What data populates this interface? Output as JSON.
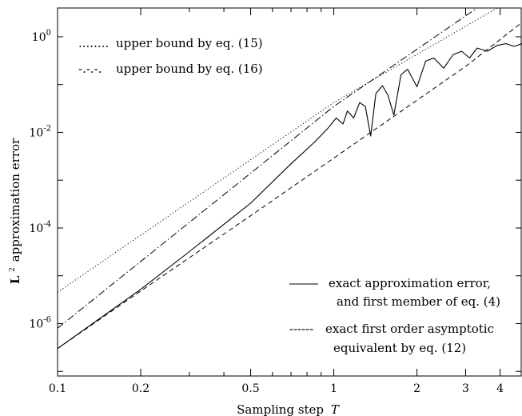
{
  "chart_data": {
    "type": "line",
    "title": "",
    "xlabel_main": "Sampling step",
    "xlabel_var": "T",
    "ylabel_main": "approximation error",
    "ylabel_prefix": "L",
    "ylabel_sup": "2",
    "xscale": "log",
    "yscale": "log",
    "xlim": [
      0.1,
      4.8
    ],
    "ylim": [
      8e-08,
      4
    ],
    "grid": false,
    "x_ticks": [
      {
        "v": 0.1,
        "label": "0.1"
      },
      {
        "v": 0.2,
        "label": "0.2"
      },
      {
        "v": 0.5,
        "label": "0.5"
      },
      {
        "v": 1,
        "label": "1"
      },
      {
        "v": 2,
        "label": "2"
      },
      {
        "v": 3,
        "label": "3"
      },
      {
        "v": 4,
        "label": "4"
      }
    ],
    "y_ticks": [
      {
        "v": 1,
        "base": "10",
        "exp": "0"
      },
      {
        "v": 0.01,
        "base": "10",
        "exp": "-2"
      },
      {
        "v": 0.0001,
        "base": "10",
        "exp": "-4"
      },
      {
        "v": 1e-06,
        "base": "10",
        "exp": "-6"
      }
    ],
    "legend": [
      {
        "sample": "........",
        "label": "upper bound by eq. (15)",
        "series": "upper_bound_15"
      },
      {
        "sample": "-.-.-.",
        "label": "upper bound by eq. (16)",
        "series": "upper_bound_16"
      },
      {
        "sample": "",
        "label": "exact approximation error,",
        "label2": "and first member of eq. (4)",
        "series": "exact_error"
      },
      {
        "sample": "------",
        "label": "exact first order asymptotic",
        "label2": "equivalent by eq. (12)",
        "series": "asymptotic"
      }
    ],
    "series": [
      {
        "key": "upper_bound_15",
        "style": "dotted",
        "x": [
          0.1,
          1,
          3.9
        ],
        "y": [
          4.5e-06,
          0.042,
          4
        ]
      },
      {
        "key": "upper_bound_16",
        "style": "dashdot",
        "x": [
          0.1,
          1,
          3.3
        ],
        "y": [
          8e-07,
          0.035,
          4
        ]
      },
      {
        "key": "asymptotic",
        "style": "dashed",
        "x": [
          0.1,
          0.2,
          0.5,
          1,
          2,
          3,
          4.8
        ],
        "y": [
          3e-07,
          4.8e-06,
          0.00018,
          0.0029,
          0.047,
          0.24,
          2.0
        ]
      },
      {
        "key": "exact_error",
        "style": "solid",
        "x": [
          0.1,
          0.15,
          0.2,
          0.3,
          0.5,
          0.7,
          0.85,
          0.95,
          1.02,
          1.08,
          1.12,
          1.18,
          1.24,
          1.3,
          1.36,
          1.42,
          1.5,
          1.57,
          1.65,
          1.75,
          1.85,
          2.0,
          2.15,
          2.3,
          2.5,
          2.7,
          2.9,
          3.1,
          3.3,
          3.6,
          3.9,
          4.2,
          4.5,
          4.8
        ],
        "y": [
          3e-07,
          1.6e-06,
          5.2e-06,
          3.2e-05,
          0.00033,
          0.0022,
          0.0062,
          0.012,
          0.02,
          0.015,
          0.028,
          0.02,
          0.042,
          0.035,
          0.0084,
          0.065,
          0.095,
          0.06,
          0.023,
          0.16,
          0.21,
          0.09,
          0.31,
          0.36,
          0.22,
          0.42,
          0.5,
          0.36,
          0.58,
          0.5,
          0.66,
          0.72,
          0.63,
          0.72
        ]
      }
    ]
  }
}
